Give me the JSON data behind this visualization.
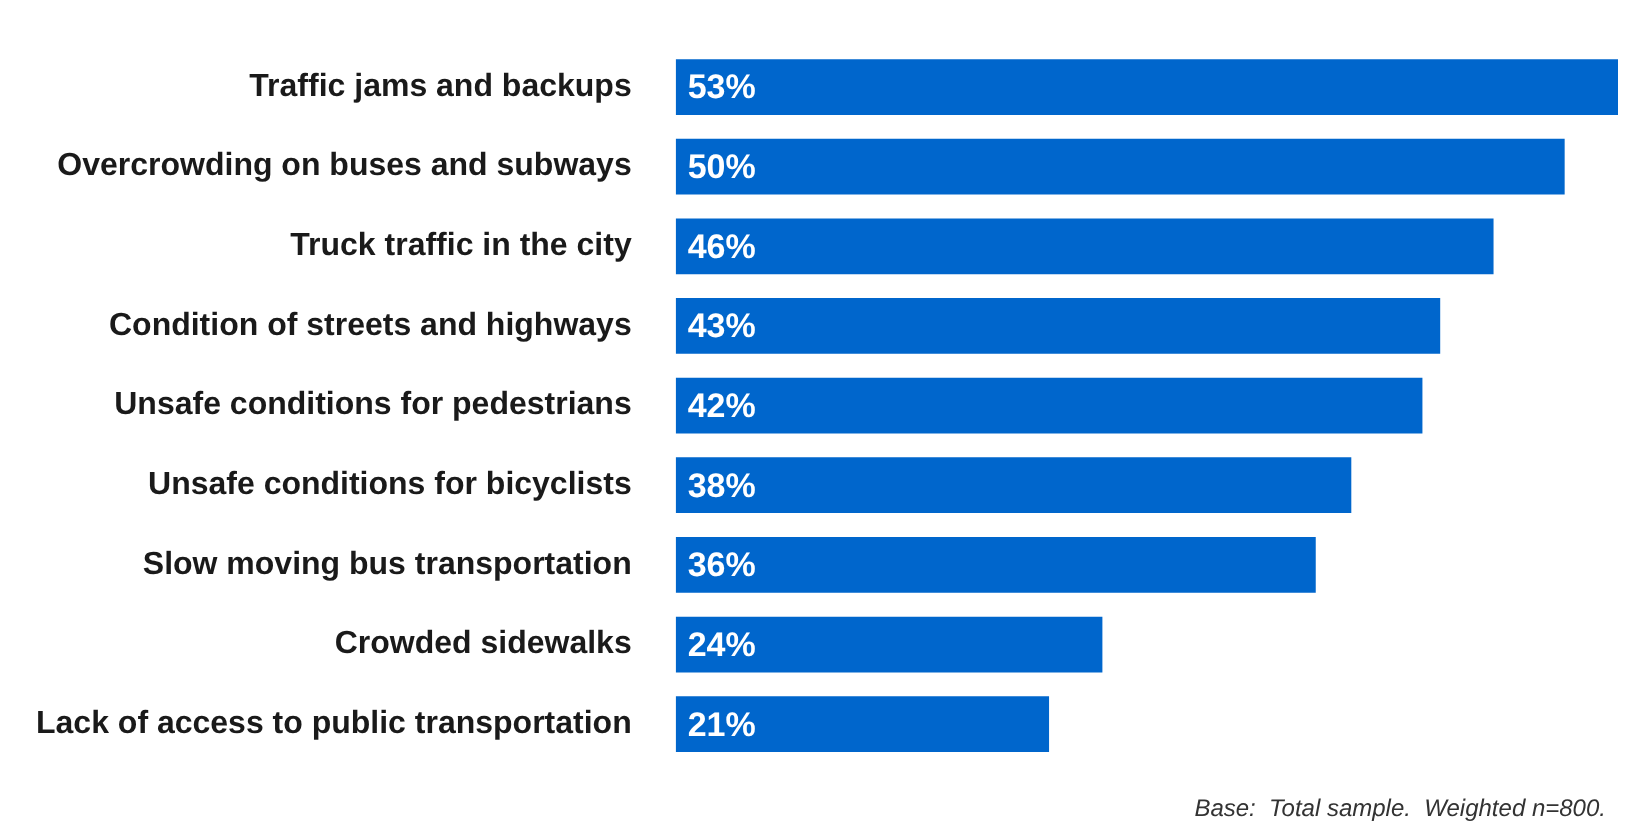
{
  "chart_data": {
    "type": "bar",
    "orientation": "horizontal",
    "categories": [
      "Traffic jams and backups",
      "Overcrowding on buses and subways",
      "Truck traffic in the city",
      "Condition of streets and highways",
      "Unsafe conditions for pedestrians",
      "Unsafe conditions for bicyclists",
      "Slow moving bus transportation",
      "Crowded sidewalks",
      "Lack of access to public transportation"
    ],
    "values": [
      53,
      50,
      46,
      43,
      42,
      38,
      36,
      24,
      21
    ],
    "value_labels": [
      "53%",
      "50%",
      "46%",
      "43%",
      "42%",
      "38%",
      "36%",
      "24%",
      "21%"
    ],
    "color": "#0066cc",
    "grid": false,
    "legend": false,
    "annotations": [
      "Base:  Total sample.  Weighted n=800."
    ]
  }
}
